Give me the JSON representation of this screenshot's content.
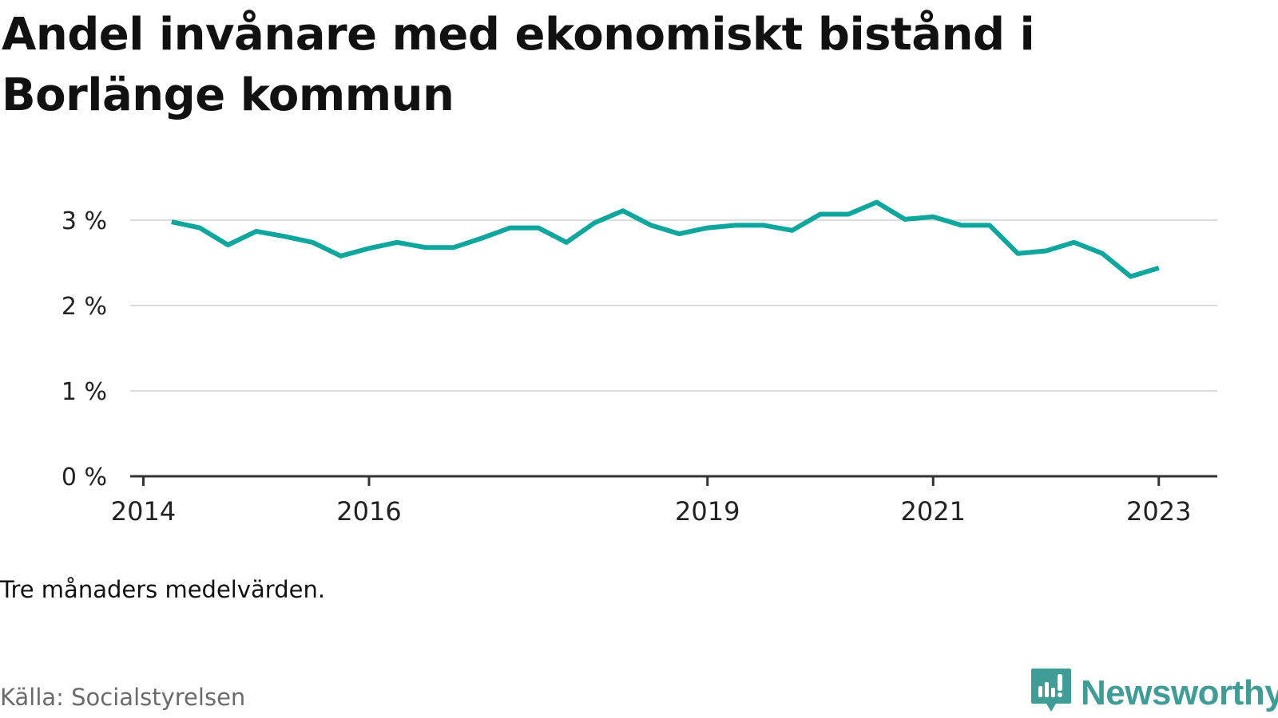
{
  "title": "Andel invånare med ekonomiskt bistånd i Borlänge kommun",
  "note": "Tre månaders medelvärden.",
  "source": "Källa: Socialstyrelsen",
  "brand": {
    "name": "Newsworthy",
    "icon": "newsworthy-logo-icon"
  },
  "colors": {
    "line": "#0ea69d",
    "grid": "#dcdcdc",
    "axis": "#333333",
    "brand": "#3f9c97",
    "muted": "#6b6b6b"
  },
  "chart_data": {
    "type": "line",
    "title": "Andel invånare med ekonomiskt bistånd i Borlänge kommun",
    "xlabel": "",
    "ylabel": "",
    "ylim": [
      0,
      3.5
    ],
    "yticks": [
      0,
      1,
      2,
      3
    ],
    "ytick_labels": [
      "0 %",
      "1 %",
      "2 %",
      "3 %"
    ],
    "xticks": [
      2014,
      2016,
      2019,
      2021,
      2023
    ],
    "xtick_labels": [
      "2014",
      "2016",
      "2019",
      "2021",
      "2023"
    ],
    "grid": true,
    "legend": "none",
    "series": [
      {
        "x": [
          2014.25,
          2014.5,
          2014.75,
          2015.0,
          2015.25,
          2015.5,
          2015.75,
          2016.0,
          2016.25,
          2016.5,
          2016.75,
          2017.0,
          2017.25,
          2017.5,
          2017.75,
          2018.0,
          2018.25,
          2018.5,
          2018.75,
          2019.0,
          2019.25,
          2019.5,
          2019.75,
          2020.0,
          2020.25,
          2020.5,
          2020.75,
          2021.0,
          2021.25,
          2021.5,
          2021.75,
          2022.0,
          2022.25,
          2022.5,
          2022.75,
          2023.0
        ],
        "values": [
          2.98,
          2.91,
          2.71,
          2.87,
          2.81,
          2.74,
          2.58,
          2.67,
          2.74,
          2.68,
          2.68,
          2.79,
          2.91,
          2.91,
          2.74,
          2.97,
          3.11,
          2.94,
          2.84,
          2.91,
          2.94,
          2.94,
          2.88,
          3.07,
          3.07,
          3.21,
          3.01,
          3.04,
          2.94,
          2.94,
          2.61,
          2.64,
          2.74,
          2.61,
          2.34,
          2.44
        ]
      }
    ]
  }
}
